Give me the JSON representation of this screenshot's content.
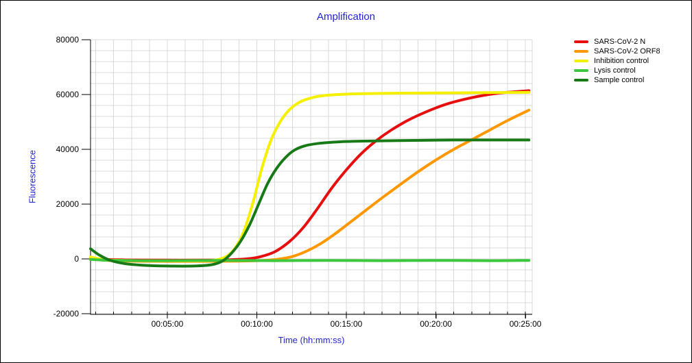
{
  "window": {
    "title": "Amplification"
  },
  "colors": {
    "title_text": "#2323cc",
    "axis_line": "#000000",
    "tick_text": "#000000",
    "grid": "#d9d9d9",
    "background": "#ffffff"
  },
  "chart_data": {
    "type": "line",
    "title": "Amplification",
    "xlabel": "Time (hh:mm:ss)",
    "ylabel": "Fluorescence",
    "x_unit": "minutes",
    "xlim": [
      0.71,
      25.38
    ],
    "ylim": [
      -20000,
      80000
    ],
    "grid": {
      "on": true,
      "x_minor_step_minutes": 1,
      "y_minor_step": 4000
    },
    "x_ticks": [
      {
        "minute": 5,
        "label": "00:05:00"
      },
      {
        "minute": 10,
        "label": "00:10:00"
      },
      {
        "minute": 15,
        "label": "00:15:00"
      },
      {
        "minute": 20,
        "label": "00:20:00"
      },
      {
        "minute": 25,
        "label": "00:25:00"
      }
    ],
    "y_ticks": [
      {
        "value": 80000,
        "label": "80000"
      },
      {
        "value": 60000,
        "label": "60000"
      },
      {
        "value": 40000,
        "label": "40000"
      },
      {
        "value": 20000,
        "label": "20000"
      },
      {
        "value": 0,
        "label": "0"
      },
      {
        "value": -20000,
        "label": "-20000"
      }
    ],
    "legend_position": "right",
    "series": [
      {
        "name": "SARS-CoV-2 N",
        "color": "#e60e0e",
        "points": [
          [
            0.71,
            300
          ],
          [
            1.5,
            -200
          ],
          [
            3,
            -400
          ],
          [
            5,
            -450
          ],
          [
            7,
            -450
          ],
          [
            8.5,
            -300
          ],
          [
            9.5,
            50
          ],
          [
            10.2,
            800
          ],
          [
            11,
            2600
          ],
          [
            11.8,
            6200
          ],
          [
            12.6,
            11500
          ],
          [
            13.4,
            18500
          ],
          [
            14.2,
            26000
          ],
          [
            15,
            32500
          ],
          [
            15.8,
            38200
          ],
          [
            16.6,
            42800
          ],
          [
            17.5,
            47000
          ],
          [
            18.5,
            50800
          ],
          [
            19.5,
            53800
          ],
          [
            20.5,
            56300
          ],
          [
            21.5,
            58100
          ],
          [
            22.5,
            59500
          ],
          [
            23.5,
            60500
          ],
          [
            24.4,
            61000
          ],
          [
            25.2,
            61400
          ]
        ]
      },
      {
        "name": "SARS-CoV-2 ORF8",
        "color": "#ff9800",
        "points": [
          [
            0.71,
            200
          ],
          [
            1.5,
            -500
          ],
          [
            3,
            -800
          ],
          [
            5,
            -900
          ],
          [
            7,
            -900
          ],
          [
            9,
            -800
          ],
          [
            10.3,
            -600
          ],
          [
            11.2,
            -100
          ],
          [
            12,
            900
          ],
          [
            12.8,
            2900
          ],
          [
            13.6,
            5700
          ],
          [
            14.4,
            9300
          ],
          [
            15.2,
            13300
          ],
          [
            16,
            17300
          ],
          [
            17,
            22300
          ],
          [
            18,
            27100
          ],
          [
            19,
            31800
          ],
          [
            20,
            36100
          ],
          [
            21,
            40000
          ],
          [
            22,
            43500
          ],
          [
            23,
            47000
          ],
          [
            24,
            50500
          ],
          [
            25.2,
            54300
          ]
        ]
      },
      {
        "name": "Inhibition control",
        "color": "#f5ef00",
        "points": [
          [
            0.71,
            700
          ],
          [
            1.5,
            -300
          ],
          [
            3,
            -600
          ],
          [
            5,
            -700
          ],
          [
            7,
            -700
          ],
          [
            7.7,
            -400
          ],
          [
            8.3,
            900
          ],
          [
            8.8,
            4100
          ],
          [
            9.3,
            10500
          ],
          [
            9.8,
            21000
          ],
          [
            10.3,
            33500
          ],
          [
            10.8,
            43500
          ],
          [
            11.3,
            50000
          ],
          [
            11.8,
            54300
          ],
          [
            12.3,
            56900
          ],
          [
            12.8,
            58300
          ],
          [
            13.5,
            59400
          ],
          [
            14.5,
            60000
          ],
          [
            16,
            60300
          ],
          [
            18,
            60500
          ],
          [
            21,
            60600
          ],
          [
            25.2,
            60800
          ]
        ]
      },
      {
        "name": "Lysis control",
        "color": "#3cc83c",
        "points": [
          [
            0.71,
            -200
          ],
          [
            2,
            -550
          ],
          [
            5,
            -650
          ],
          [
            8,
            -550
          ],
          [
            11,
            -650
          ],
          [
            14,
            -550
          ],
          [
            17,
            -650
          ],
          [
            20,
            -550
          ],
          [
            23,
            -650
          ],
          [
            25.2,
            -550
          ]
        ]
      },
      {
        "name": "Sample control",
        "color": "#177a17",
        "points": [
          [
            0.71,
            3700
          ],
          [
            1.2,
            1400
          ],
          [
            1.8,
            -500
          ],
          [
            2.6,
            -1700
          ],
          [
            3.6,
            -2300
          ],
          [
            5,
            -2600
          ],
          [
            6.5,
            -2600
          ],
          [
            7.5,
            -2100
          ],
          [
            8.1,
            -700
          ],
          [
            8.6,
            2200
          ],
          [
            9.1,
            6500
          ],
          [
            9.6,
            12500
          ],
          [
            10.1,
            20000
          ],
          [
            10.6,
            27500
          ],
          [
            11.1,
            33000
          ],
          [
            11.6,
            37000
          ],
          [
            12.1,
            39700
          ],
          [
            12.7,
            41300
          ],
          [
            13.5,
            42200
          ],
          [
            14.5,
            42700
          ],
          [
            16,
            43000
          ],
          [
            18,
            43200
          ],
          [
            21,
            43400
          ],
          [
            25.2,
            43400
          ]
        ]
      }
    ]
  }
}
